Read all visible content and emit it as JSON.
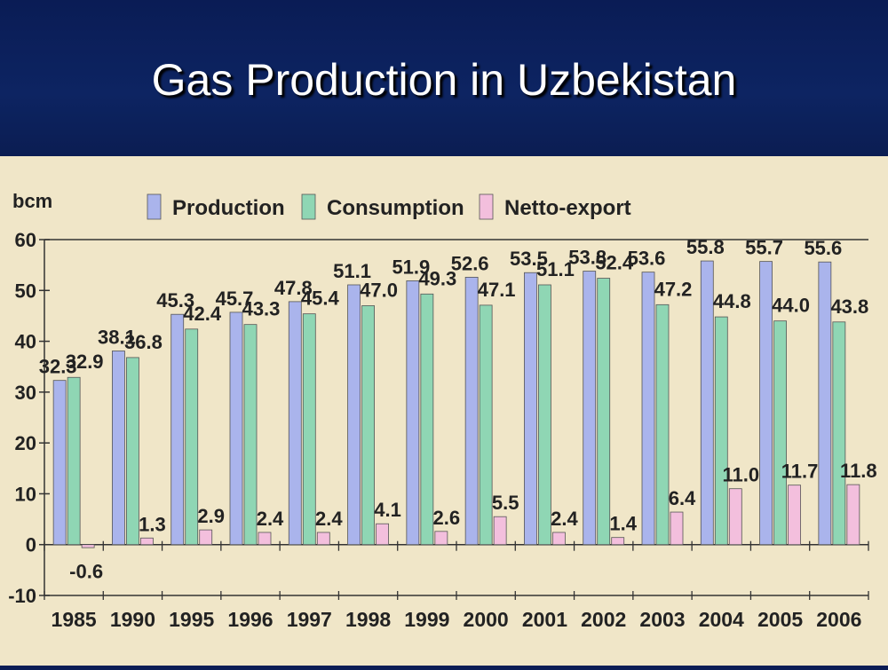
{
  "slide": {
    "title": "Gas Production in Uzbekistan"
  },
  "chart_data": {
    "type": "bar",
    "title": "",
    "xlabel": "",
    "ylabel": "bcm",
    "ylim": [
      -10,
      60
    ],
    "yticks": [
      -10,
      0,
      10,
      20,
      30,
      40,
      50,
      60
    ],
    "grid": false,
    "legend_position": "top",
    "categories": [
      "1985",
      "1990",
      "1995",
      "1996",
      "1997",
      "1998",
      "1999",
      "2000",
      "2001",
      "2002",
      "2003",
      "2004",
      "2005",
      "2006"
    ],
    "series": [
      {
        "name": "Production",
        "color": "#aab4ec",
        "values": [
          32.3,
          38.1,
          45.3,
          45.7,
          47.8,
          51.1,
          51.9,
          52.6,
          53.5,
          53.8,
          53.6,
          55.8,
          55.7,
          55.6
        ]
      },
      {
        "name": "Consumption",
        "color": "#8fd6b4",
        "values": [
          32.9,
          36.8,
          42.4,
          43.3,
          45.4,
          47.0,
          49.3,
          47.1,
          51.1,
          52.4,
          47.2,
          44.8,
          44.0,
          43.8
        ]
      },
      {
        "name": "Netto-export",
        "color": "#f3bfdd",
        "values": [
          -0.6,
          1.3,
          2.9,
          2.4,
          2.4,
          4.1,
          2.6,
          5.5,
          2.4,
          1.4,
          6.4,
          11.0,
          11.7,
          11.8
        ]
      }
    ],
    "data_labels": {
      "Production": [
        "32.3",
        "38.1",
        "45.3",
        "45.7",
        "47.8",
        "51.1",
        "51.9",
        "52.6",
        "53.5",
        "53.8",
        "53.6",
        "55.8",
        "55.7",
        "55.6"
      ],
      "Consumption": [
        "32.9",
        "36.8",
        "42.4",
        "43.3",
        "45.4",
        "47.0",
        "49.3",
        "47.1",
        "51.1",
        "52.4",
        "47.2",
        "44.8",
        "44.0",
        "43.8"
      ],
      "Netto-export": [
        "-0.6",
        "1.3",
        "2.9",
        "2.4",
        "2.4",
        "4.1",
        "2.6",
        "5.5",
        "2.4",
        "1.4",
        "6.4",
        "11.0",
        "11.7",
        "11.8"
      ]
    }
  }
}
